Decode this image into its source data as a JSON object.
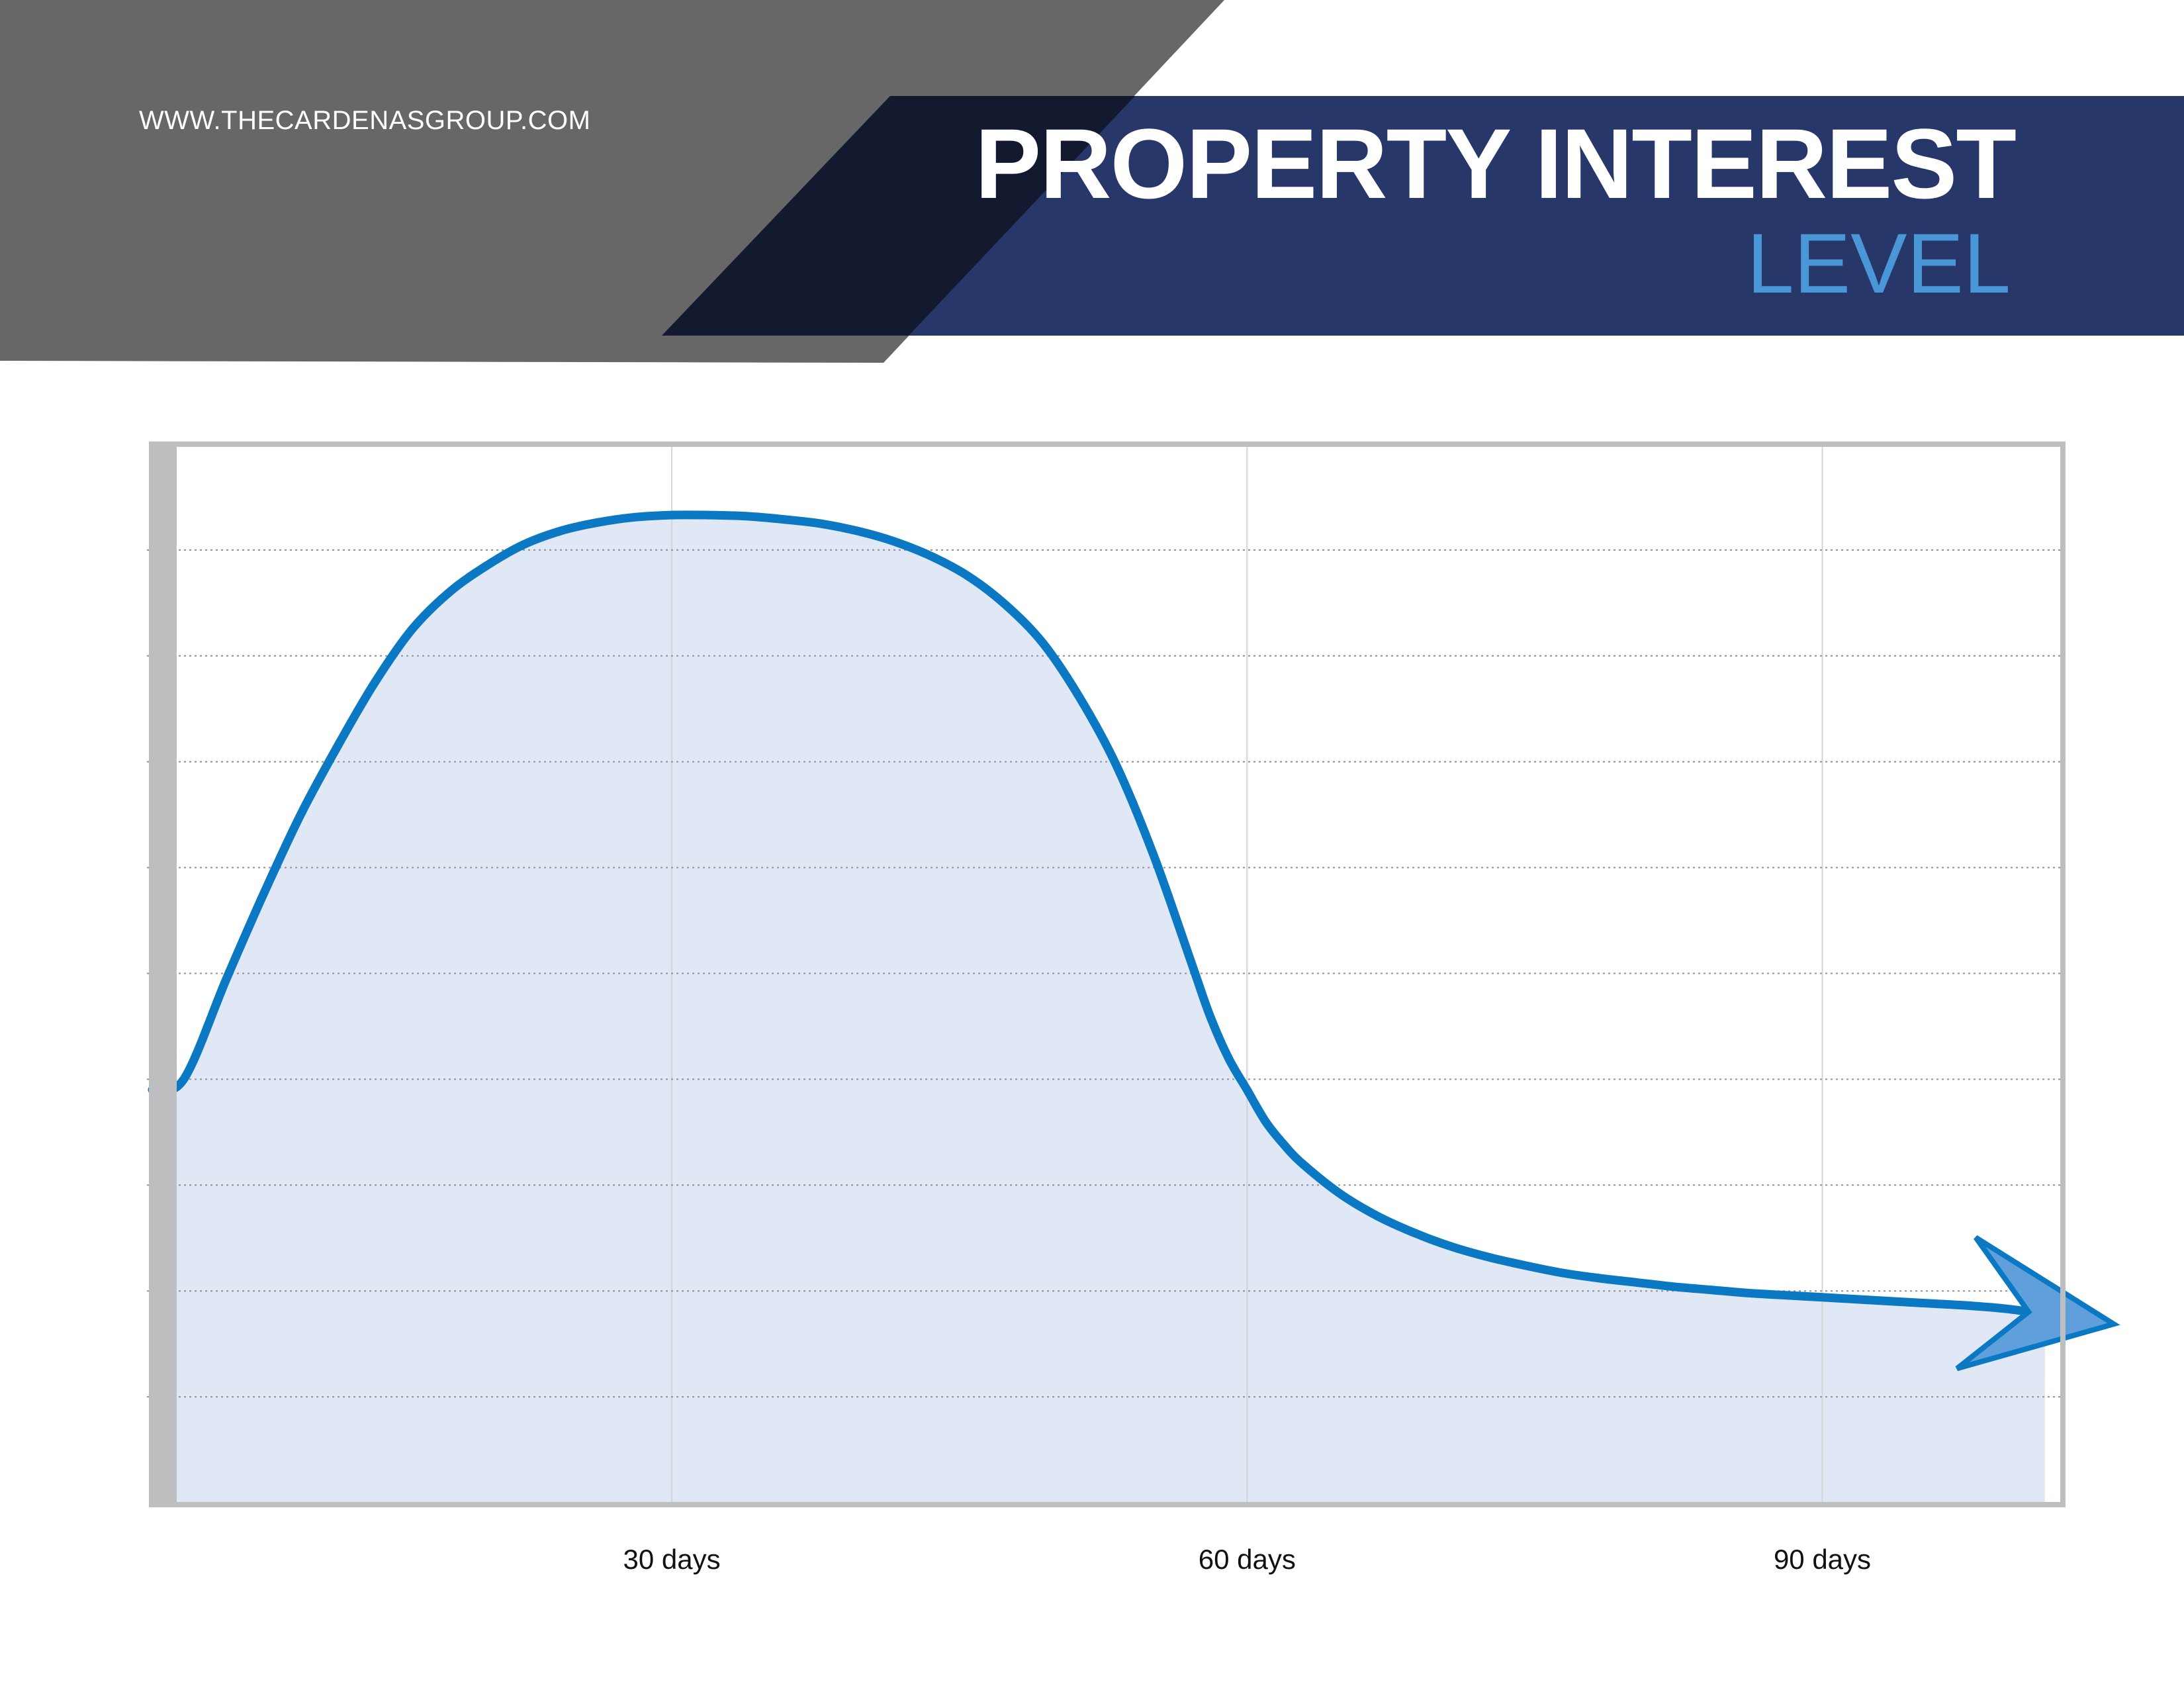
{
  "header": {
    "url": "WWW.THECARDENASGROUP.COM",
    "title": "PROPERTY INTEREST",
    "subtitle": "LEVEL"
  },
  "colors": {
    "header_gray": "#676767",
    "header_navy": "#27376a",
    "header_dark": "#13192e",
    "accent_blue": "#4a97d8",
    "line_blue": "#0a78c2",
    "fill_blue": "#e1e8f5",
    "frame_gray": "#bdbec0"
  },
  "chart_data": {
    "type": "area",
    "title": "PROPERTY INTEREST LEVEL",
    "xlabel": "",
    "ylabel": "",
    "xlim": [
      0,
      103
    ],
    "ylim": [
      0,
      10
    ],
    "x_ticks": [
      {
        "value": 28,
        "label": "30 days"
      },
      {
        "value": 59,
        "label": "60 days"
      },
      {
        "value": 90,
        "label": "90 days"
      }
    ],
    "grid": {
      "horizontal": true,
      "vertical": true,
      "horizontal_lines": 9
    },
    "series": [
      {
        "name": "",
        "x": [
          0,
          1.7,
          4,
          6,
          8,
          10,
          12,
          14,
          16,
          18,
          20,
          22,
          24,
          26,
          28,
          30,
          32,
          34,
          36,
          38,
          40,
          42,
          44,
          46,
          48,
          50,
          52,
          54,
          56,
          57,
          58,
          59,
          60,
          61,
          62,
          64,
          66,
          68,
          70,
          72,
          74,
          76,
          78,
          80,
          82,
          84,
          86,
          88,
          90,
          92,
          94,
          96,
          98,
          100,
          102
        ],
        "y": [
          3.9,
          4.0,
          4.95,
          5.75,
          6.5,
          7.15,
          7.75,
          8.25,
          8.6,
          8.85,
          9.05,
          9.18,
          9.26,
          9.31,
          9.33,
          9.33,
          9.32,
          9.29,
          9.25,
          9.18,
          9.08,
          8.94,
          8.75,
          8.48,
          8.12,
          7.6,
          6.95,
          6.1,
          5.1,
          4.6,
          4.2,
          3.9,
          3.6,
          3.38,
          3.2,
          2.92,
          2.71,
          2.55,
          2.42,
          2.32,
          2.24,
          2.17,
          2.12,
          2.08,
          2.04,
          2.01,
          1.98,
          1.96,
          1.94,
          1.92,
          1.9,
          1.88,
          1.86,
          1.83,
          1.78
        ]
      }
    ],
    "annotations": [
      "arrowhead at end of series"
    ]
  }
}
